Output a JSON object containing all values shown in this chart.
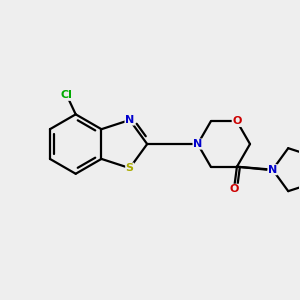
{
  "bg": "#eeeeee",
  "bc": "#000000",
  "nc": "#0000cc",
  "sc": "#aaaa00",
  "oc": "#cc0000",
  "clc": "#00aa00",
  "lw": 1.6,
  "fs": 8.0,
  "figsize": [
    3.0,
    3.0
  ],
  "dpi": 100,
  "xlim": [
    -2.6,
    2.4
  ],
  "ylim": [
    -1.4,
    1.3
  ]
}
